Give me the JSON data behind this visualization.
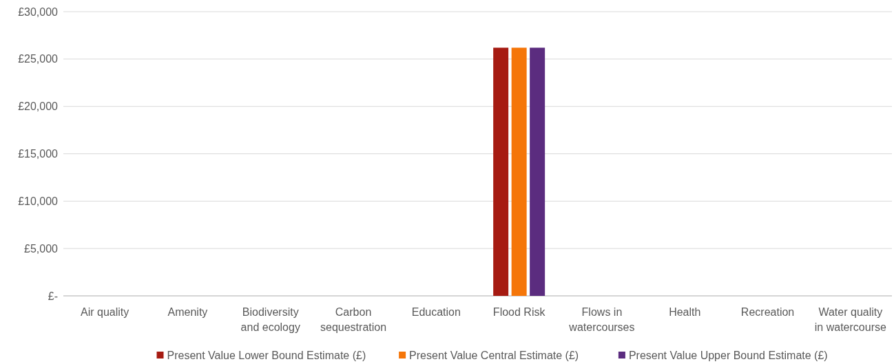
{
  "chart_data": {
    "type": "bar",
    "categories": [
      "Air quality",
      "Amenity",
      "Biodiversity and ecology",
      "Carbon sequestration",
      "Education",
      "Flood Risk",
      "Flows in watercourses",
      "Health",
      "Recreation",
      "Water quality in watercourse"
    ],
    "series": [
      {
        "name": "Present Value Lower Bound Estimate (£)",
        "color": "#a61b12",
        "values": [
          0,
          0,
          0,
          0,
          0,
          26200,
          0,
          0,
          0,
          0
        ]
      },
      {
        "name": "Present Value Central Estimate (£)",
        "color": "#f57609",
        "values": [
          0,
          0,
          0,
          0,
          0,
          26200,
          0,
          0,
          0,
          0
        ]
      },
      {
        "name": "Present Value Upper Bound Estimate (£)",
        "color": "#5b2c7f",
        "values": [
          0,
          0,
          0,
          0,
          0,
          26200,
          0,
          0,
          0,
          0
        ]
      }
    ],
    "ylim": [
      0,
      30000
    ],
    "yticks": [
      {
        "value": 0,
        "label": "£-"
      },
      {
        "value": 5000,
        "label": "£5,000"
      },
      {
        "value": 10000,
        "label": "£10,000"
      },
      {
        "value": 15000,
        "label": "£15,000"
      },
      {
        "value": 20000,
        "label": "£20,000"
      },
      {
        "value": 25000,
        "label": "£25,000"
      },
      {
        "value": 30000,
        "label": "£30,000"
      }
    ],
    "grid": "y",
    "legend": "bottom"
  }
}
